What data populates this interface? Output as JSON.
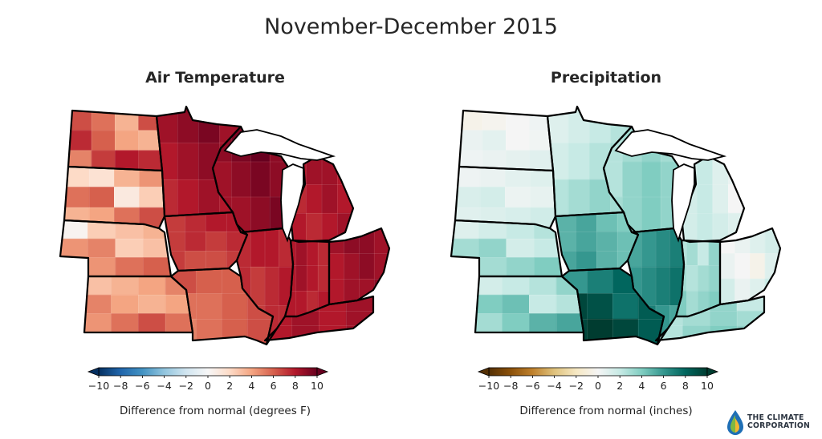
{
  "figure": {
    "title": "November-December 2015",
    "branding": "THE CLIMATE CORPORATION"
  },
  "colors": {
    "temperature_scale": [
      "#053061",
      "#2166ac",
      "#4393c3",
      "#92c5de",
      "#d1e5f0",
      "#f7f7f7",
      "#fddbc7",
      "#f4a582",
      "#d6604d",
      "#b2182b",
      "#67001f"
    ],
    "precipitation_scale": [
      "#543005",
      "#8c510a",
      "#bf812d",
      "#dfc27d",
      "#f6e8c3",
      "#f5f5f5",
      "#c7eae5",
      "#80cdc1",
      "#35978f",
      "#01665e",
      "#003c30"
    ]
  },
  "chart_data": [
    {
      "type": "heatmap",
      "subtype": "choropleth-map",
      "title": "Air Temperature",
      "colorbar": {
        "label": "Difference from normal (degrees F)",
        "ticks": [
          "−10",
          "−8",
          "−6",
          "−4",
          "−2",
          "0",
          "2",
          "4",
          "6",
          "8",
          "10"
        ],
        "range": [
          -10,
          10
        ],
        "colormap": "diverging blue-red",
        "extend": "both"
      },
      "regions": [
        {
          "name": "North Dakota",
          "values": [
            6.5,
            5.5,
            3.5,
            6.5,
            7.5,
            6.0,
            4.0,
            3.5,
            5.0,
            7.0,
            8.0,
            7.5
          ]
        },
        {
          "name": "South Dakota",
          "values": [
            2.0,
            1.5,
            3.5,
            4.5,
            5.5,
            6.0,
            1.0,
            2.5,
            3.5,
            4.0,
            5.5,
            6.5
          ]
        },
        {
          "name": "Nebraska",
          "values": [
            0.3,
            2.5,
            3.0,
            3.5,
            4.5,
            5.0,
            2.5,
            3.0,
            3.5,
            4.5,
            5.5,
            6.0
          ]
        },
        {
          "name": "Kansas",
          "values": [
            3.0,
            3.5,
            4.0,
            5.0,
            5.0,
            4.0,
            3.5,
            4.0,
            4.5,
            5.5,
            6.5,
            5.5
          ]
        },
        {
          "name": "Minnesota",
          "values": [
            8.5,
            9.0,
            9.5,
            8.5,
            8.0,
            8.5,
            9.0,
            8.5,
            7.5,
            8.0,
            8.5,
            8.0
          ]
        },
        {
          "name": "Iowa",
          "values": [
            7.0,
            7.5,
            8.0,
            8.0,
            7.0,
            7.5,
            7.0,
            7.5,
            7.0,
            6.5,
            6.5,
            7.0
          ]
        },
        {
          "name": "Missouri",
          "values": [
            6.5,
            6.0,
            6.0,
            6.5,
            5.5,
            5.5,
            6.0,
            6.5,
            5.0,
            5.5,
            6.0,
            6.5
          ]
        },
        {
          "name": "Wisconsin",
          "values": [
            9.0,
            9.5,
            10.0,
            9.0,
            8.5,
            9.0,
            9.5,
            9.0,
            8.5,
            8.5,
            9.0,
            9.5
          ]
        },
        {
          "name": "Illinois",
          "values": [
            7.5,
            8.0,
            8.0,
            7.5,
            7.5,
            7.0,
            7.5,
            8.0,
            7.0,
            7.0,
            7.5,
            7.5
          ]
        },
        {
          "name": "Michigan",
          "values": [
            8.0,
            8.5,
            8.5,
            8.0,
            7.5,
            8.0,
            8.5,
            8.0,
            8.0,
            7.5,
            8.0,
            8.5
          ]
        },
        {
          "name": "Indiana",
          "values": [
            8.0,
            8.5,
            8.0,
            7.5,
            8.0,
            8.5,
            8.0,
            7.5,
            8.0,
            8.0,
            7.5,
            8.0
          ]
        },
        {
          "name": "Ohio",
          "values": [
            8.5,
            9.0,
            9.0,
            8.5,
            8.0,
            8.5,
            9.0,
            8.5,
            8.0,
            8.5,
            8.5,
            9.0
          ]
        },
        {
          "name": "Kentucky",
          "values": [
            8.0,
            8.5,
            8.0,
            8.5,
            8.0,
            8.5,
            8.0,
            8.5,
            8.0,
            8.5,
            8.0,
            8.5
          ]
        }
      ]
    },
    {
      "type": "heatmap",
      "subtype": "choropleth-map",
      "title": "Precipitation",
      "colorbar": {
        "label": "Difference from normal (inches)",
        "ticks": [
          "−10",
          "−8",
          "−6",
          "−4",
          "−2",
          "0",
          "2",
          "4",
          "6",
          "8",
          "10"
        ],
        "range": [
          -10,
          10
        ],
        "colormap": "diverging brown-teal",
        "extend": "both"
      },
      "regions": [
        {
          "name": "North Dakota",
          "values": [
            -0.5,
            -0.3,
            0.0,
            0.3,
            0.5,
            0.8,
            0.0,
            0.2,
            0.3,
            0.5,
            0.7,
            0.9
          ]
        },
        {
          "name": "South Dakota",
          "values": [
            0.3,
            0.5,
            0.8,
            1.0,
            1.2,
            1.5,
            0.4,
            0.6,
            0.9,
            1.1,
            1.3,
            1.6
          ]
        },
        {
          "name": "Nebraska",
          "values": [
            1.0,
            1.5,
            2.0,
            2.5,
            3.0,
            3.5,
            1.5,
            2.0,
            2.5,
            3.0,
            3.5,
            4.0
          ]
        },
        {
          "name": "Kansas",
          "values": [
            1.5,
            2.0,
            2.5,
            3.5,
            4.0,
            4.5,
            2.0,
            2.5,
            3.0,
            4.0,
            5.0,
            5.5
          ]
        },
        {
          "name": "Minnesota",
          "values": [
            1.0,
            1.5,
            2.0,
            2.5,
            1.5,
            2.0,
            2.5,
            3.0,
            2.5,
            3.0,
            3.5,
            3.0
          ]
        },
        {
          "name": "Iowa",
          "values": [
            5.0,
            5.5,
            4.5,
            4.0,
            5.0,
            5.5,
            5.0,
            4.5,
            5.5,
            6.0,
            5.0,
            4.5
          ]
        },
        {
          "name": "Missouri",
          "values": [
            6.0,
            7.0,
            8.0,
            9.0,
            9.5,
            9.0,
            7.5,
            8.5,
            9.5,
            10.0,
            9.5,
            8.5
          ]
        },
        {
          "name": "Wisconsin",
          "values": [
            2.5,
            3.0,
            3.5,
            3.0,
            2.5,
            3.5,
            4.0,
            3.5,
            3.0,
            3.5,
            4.0,
            3.5
          ]
        },
        {
          "name": "Illinois",
          "values": [
            5.5,
            6.0,
            6.5,
            7.0,
            6.0,
            6.5,
            7.0,
            7.5,
            6.5,
            7.0,
            6.0,
            5.5
          ]
        },
        {
          "name": "Michigan",
          "values": [
            1.5,
            2.0,
            1.0,
            0.5,
            1.5,
            2.0,
            1.0,
            0.0,
            1.5,
            2.0,
            1.5,
            1.0
          ]
        },
        {
          "name": "Indiana",
          "values": [
            2.5,
            3.0,
            2.0,
            3.5,
            3.0,
            2.5,
            3.0,
            3.5,
            4.0,
            3.0,
            3.5,
            4.0
          ]
        },
        {
          "name": "Ohio",
          "values": [
            0.0,
            0.5,
            1.0,
            1.5,
            0.5,
            0.0,
            -0.5,
            1.0,
            1.5,
            0.5,
            1.0,
            2.0
          ]
        },
        {
          "name": "Kentucky",
          "values": [
            2.5,
            3.0,
            3.5,
            2.0,
            2.5,
            3.0,
            3.5,
            3.0,
            2.5,
            3.5,
            4.0,
            3.5
          ]
        }
      ]
    }
  ]
}
